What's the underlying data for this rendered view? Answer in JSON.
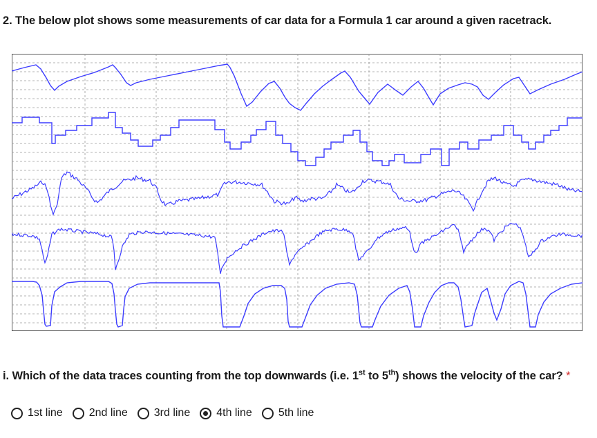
{
  "question": {
    "title": "2. The below plot shows some measurements of car data for a Formula 1 car around a given racetrack."
  },
  "sub_question": {
    "text_a": "i. Which of the data traces counting from the top downwards (i.e. 1",
    "sup_a": "st",
    "text_b": " to 5",
    "sup_b": "th",
    "text_c": ") shows the velocity of the car?",
    "required_mark": "*"
  },
  "options": [
    {
      "label": "1st line",
      "selected": false
    },
    {
      "label": "2nd line",
      "selected": false
    },
    {
      "label": "3rd line",
      "selected": false
    },
    {
      "label": "4th line",
      "selected": true
    },
    {
      "label": "5th line",
      "selected": false
    }
  ],
  "plot": {
    "trace_color": "#3c3cff",
    "grid_color": "#9a9a9a",
    "border_color": "#222222",
    "trace_count": 5
  }
}
